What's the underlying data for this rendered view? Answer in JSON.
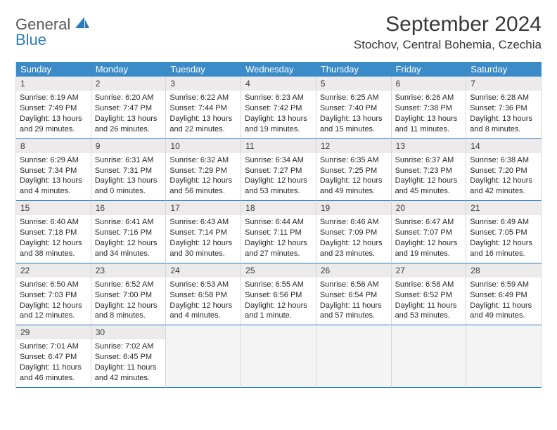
{
  "logo": {
    "line1": "General",
    "line2": "Blue"
  },
  "title": "September 2024",
  "location": "Stochov, Central Bohemia, Czechia",
  "colors": {
    "header_bg": "#3b8bc9",
    "header_text": "#ffffff",
    "daynum_bg": "#eceaea",
    "row_border": "#2b7bbf",
    "cell_border": "#d6d6d6",
    "logo_blue": "#2b7bbf",
    "logo_gray": "#585858",
    "text": "#272727"
  },
  "weekdays": [
    "Sunday",
    "Monday",
    "Tuesday",
    "Wednesday",
    "Thursday",
    "Friday",
    "Saturday"
  ],
  "weeks": [
    [
      {
        "n": "1",
        "sunrise": "Sunrise: 6:19 AM",
        "sunset": "Sunset: 7:49 PM",
        "daylight": "Daylight: 13 hours and 29 minutes."
      },
      {
        "n": "2",
        "sunrise": "Sunrise: 6:20 AM",
        "sunset": "Sunset: 7:47 PM",
        "daylight": "Daylight: 13 hours and 26 minutes."
      },
      {
        "n": "3",
        "sunrise": "Sunrise: 6:22 AM",
        "sunset": "Sunset: 7:44 PM",
        "daylight": "Daylight: 13 hours and 22 minutes."
      },
      {
        "n": "4",
        "sunrise": "Sunrise: 6:23 AM",
        "sunset": "Sunset: 7:42 PM",
        "daylight": "Daylight: 13 hours and 19 minutes."
      },
      {
        "n": "5",
        "sunrise": "Sunrise: 6:25 AM",
        "sunset": "Sunset: 7:40 PM",
        "daylight": "Daylight: 13 hours and 15 minutes."
      },
      {
        "n": "6",
        "sunrise": "Sunrise: 6:26 AM",
        "sunset": "Sunset: 7:38 PM",
        "daylight": "Daylight: 13 hours and 11 minutes."
      },
      {
        "n": "7",
        "sunrise": "Sunrise: 6:28 AM",
        "sunset": "Sunset: 7:36 PM",
        "daylight": "Daylight: 13 hours and 8 minutes."
      }
    ],
    [
      {
        "n": "8",
        "sunrise": "Sunrise: 6:29 AM",
        "sunset": "Sunset: 7:34 PM",
        "daylight": "Daylight: 13 hours and 4 minutes."
      },
      {
        "n": "9",
        "sunrise": "Sunrise: 6:31 AM",
        "sunset": "Sunset: 7:31 PM",
        "daylight": "Daylight: 13 hours and 0 minutes."
      },
      {
        "n": "10",
        "sunrise": "Sunrise: 6:32 AM",
        "sunset": "Sunset: 7:29 PM",
        "daylight": "Daylight: 12 hours and 56 minutes."
      },
      {
        "n": "11",
        "sunrise": "Sunrise: 6:34 AM",
        "sunset": "Sunset: 7:27 PM",
        "daylight": "Daylight: 12 hours and 53 minutes."
      },
      {
        "n": "12",
        "sunrise": "Sunrise: 6:35 AM",
        "sunset": "Sunset: 7:25 PM",
        "daylight": "Daylight: 12 hours and 49 minutes."
      },
      {
        "n": "13",
        "sunrise": "Sunrise: 6:37 AM",
        "sunset": "Sunset: 7:23 PM",
        "daylight": "Daylight: 12 hours and 45 minutes."
      },
      {
        "n": "14",
        "sunrise": "Sunrise: 6:38 AM",
        "sunset": "Sunset: 7:20 PM",
        "daylight": "Daylight: 12 hours and 42 minutes."
      }
    ],
    [
      {
        "n": "15",
        "sunrise": "Sunrise: 6:40 AM",
        "sunset": "Sunset: 7:18 PM",
        "daylight": "Daylight: 12 hours and 38 minutes."
      },
      {
        "n": "16",
        "sunrise": "Sunrise: 6:41 AM",
        "sunset": "Sunset: 7:16 PM",
        "daylight": "Daylight: 12 hours and 34 minutes."
      },
      {
        "n": "17",
        "sunrise": "Sunrise: 6:43 AM",
        "sunset": "Sunset: 7:14 PM",
        "daylight": "Daylight: 12 hours and 30 minutes."
      },
      {
        "n": "18",
        "sunrise": "Sunrise: 6:44 AM",
        "sunset": "Sunset: 7:11 PM",
        "daylight": "Daylight: 12 hours and 27 minutes."
      },
      {
        "n": "19",
        "sunrise": "Sunrise: 6:46 AM",
        "sunset": "Sunset: 7:09 PM",
        "daylight": "Daylight: 12 hours and 23 minutes."
      },
      {
        "n": "20",
        "sunrise": "Sunrise: 6:47 AM",
        "sunset": "Sunset: 7:07 PM",
        "daylight": "Daylight: 12 hours and 19 minutes."
      },
      {
        "n": "21",
        "sunrise": "Sunrise: 6:49 AM",
        "sunset": "Sunset: 7:05 PM",
        "daylight": "Daylight: 12 hours and 16 minutes."
      }
    ],
    [
      {
        "n": "22",
        "sunrise": "Sunrise: 6:50 AM",
        "sunset": "Sunset: 7:03 PM",
        "daylight": "Daylight: 12 hours and 12 minutes."
      },
      {
        "n": "23",
        "sunrise": "Sunrise: 6:52 AM",
        "sunset": "Sunset: 7:00 PM",
        "daylight": "Daylight: 12 hours and 8 minutes."
      },
      {
        "n": "24",
        "sunrise": "Sunrise: 6:53 AM",
        "sunset": "Sunset: 6:58 PM",
        "daylight": "Daylight: 12 hours and 4 minutes."
      },
      {
        "n": "25",
        "sunrise": "Sunrise: 6:55 AM",
        "sunset": "Sunset: 6:56 PM",
        "daylight": "Daylight: 12 hours and 1 minute."
      },
      {
        "n": "26",
        "sunrise": "Sunrise: 6:56 AM",
        "sunset": "Sunset: 6:54 PM",
        "daylight": "Daylight: 11 hours and 57 minutes."
      },
      {
        "n": "27",
        "sunrise": "Sunrise: 6:58 AM",
        "sunset": "Sunset: 6:52 PM",
        "daylight": "Daylight: 11 hours and 53 minutes."
      },
      {
        "n": "28",
        "sunrise": "Sunrise: 6:59 AM",
        "sunset": "Sunset: 6:49 PM",
        "daylight": "Daylight: 11 hours and 49 minutes."
      }
    ],
    [
      {
        "n": "29",
        "sunrise": "Sunrise: 7:01 AM",
        "sunset": "Sunset: 6:47 PM",
        "daylight": "Daylight: 11 hours and 46 minutes."
      },
      {
        "n": "30",
        "sunrise": "Sunrise: 7:02 AM",
        "sunset": "Sunset: 6:45 PM",
        "daylight": "Daylight: 11 hours and 42 minutes."
      },
      {
        "empty": true
      },
      {
        "empty": true
      },
      {
        "empty": true
      },
      {
        "empty": true
      },
      {
        "empty": true
      }
    ]
  ]
}
